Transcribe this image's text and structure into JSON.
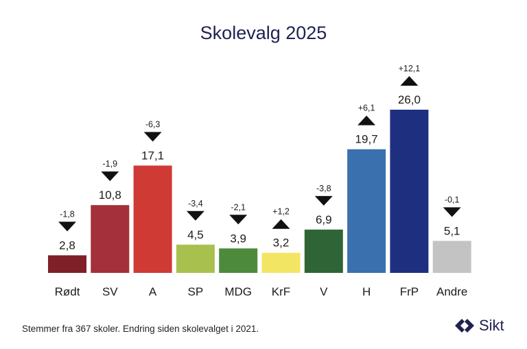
{
  "title": "Skolevalg 2025",
  "footnote": "Stemmer fra 367 skoler. Endring siden skolevalget i 2021.",
  "logo": {
    "name": "Sikt",
    "icon": "sikt-logo-icon",
    "color": "#1f2150"
  },
  "chart_data": {
    "type": "bar",
    "title": "Skolevalg 2025",
    "xlabel": "",
    "ylabel": "",
    "ylim": [
      0,
      26
    ],
    "grid": false,
    "categories": [
      "Rødt",
      "SV",
      "A",
      "SP",
      "MDG",
      "KrF",
      "V",
      "H",
      "FrP",
      "Andre"
    ],
    "values": [
      2.8,
      10.8,
      17.1,
      4.5,
      3.9,
      3.2,
      6.9,
      19.7,
      26.0,
      5.1
    ],
    "value_labels": [
      "2,8",
      "10,8",
      "17,1",
      "4,5",
      "3,9",
      "3,2",
      "6,9",
      "19,7",
      "26,0",
      "5,1"
    ],
    "changes": [
      -1.8,
      -1.9,
      -6.3,
      -3.4,
      -2.1,
      1.2,
      -3.8,
      6.1,
      12.1,
      -0.1
    ],
    "change_labels": [
      "-1,8",
      "-1,9",
      "-6,3",
      "-3,4",
      "-2,1",
      "+1,2",
      "-3,8",
      "+6,1",
      "+12,1",
      "-0,1"
    ],
    "colors": [
      "#7f1f28",
      "#a3303a",
      "#cf3a35",
      "#a8c14e",
      "#4d8a3c",
      "#f3e564",
      "#2f6536",
      "#3a70ad",
      "#1f2f80",
      "#c3c3c3"
    ]
  }
}
